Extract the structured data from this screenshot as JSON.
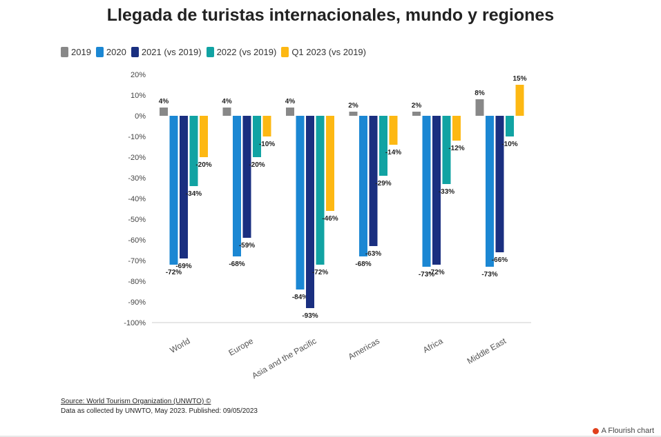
{
  "page": {
    "title": "Llegada de turistas internacionales, mundo y regiones",
    "source_text": "Source: World Tourism Organization (UNWTO) ©",
    "source_note": "Data as collected by UNWTO, May 2023. Published: 09/05/2023",
    "branding": "A Flourish chart"
  },
  "chart_data": {
    "type": "bar",
    "title": "Llegada de turistas internacionales, mundo y regiones",
    "xlabel": "",
    "ylabel": "",
    "ylim": [
      -100,
      20
    ],
    "yticks": [
      20,
      10,
      0,
      -10,
      -20,
      -30,
      -40,
      -50,
      -60,
      -70,
      -80,
      -90,
      -100
    ],
    "tick_format": "%",
    "grid": false,
    "legend_position": "top-left",
    "categories": [
      "World",
      "Europe",
      "Asia and the Pacific",
      "Americas",
      "Africa",
      "Middle East"
    ],
    "series": [
      {
        "name": "2019",
        "color": "#888888",
        "values": [
          4,
          4,
          4,
          2,
          2,
          8
        ]
      },
      {
        "name": "2020",
        "color": "#1b87d3",
        "values": [
          -72,
          -68,
          -84,
          -68,
          -73,
          -73
        ]
      },
      {
        "name": "2021 (vs 2019)",
        "color": "#1a2f80",
        "values": [
          -69,
          -59,
          -93,
          -63,
          -72,
          -66
        ]
      },
      {
        "name": "2022 (vs 2019)",
        "color": "#11a3a3",
        "values": [
          -34,
          -20,
          -72,
          -29,
          -33,
          -10
        ]
      },
      {
        "name": "Q1 2023 (vs 2019)",
        "color": "#fdb813",
        "values": [
          -20,
          -10,
          -46,
          -14,
          -12,
          15
        ]
      }
    ]
  }
}
